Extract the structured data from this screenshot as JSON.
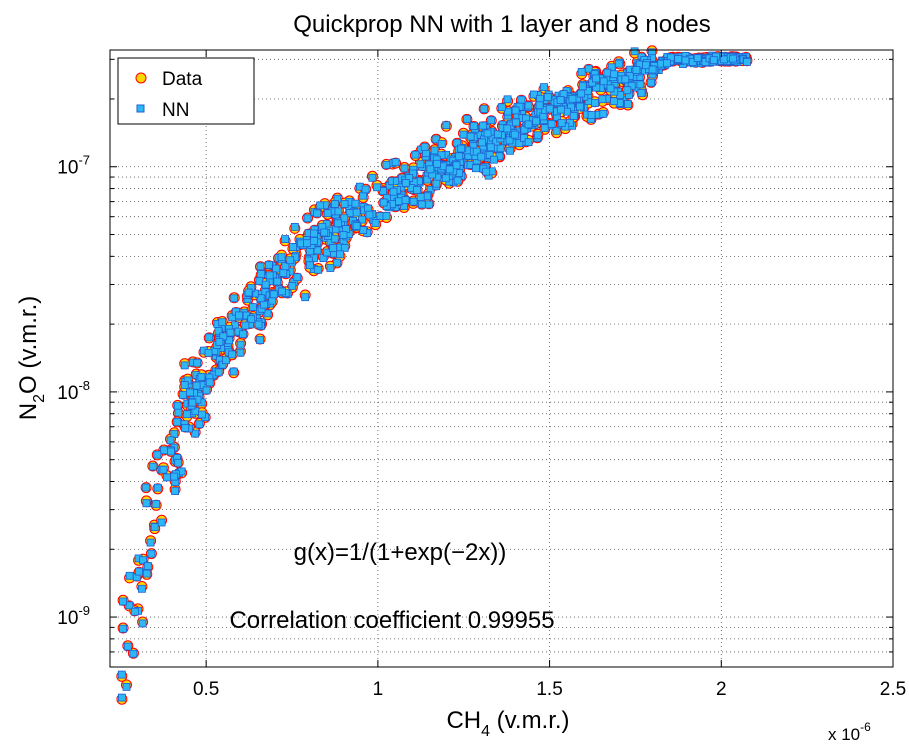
{
  "chart_data": {
    "type": "scatter",
    "title": "Quickprop NN with 1 layer and 8 nodes",
    "xlabel": {
      "main": "CH",
      "sub": "4",
      "suffix": " (v.m.r.)"
    },
    "ylabel": {
      "main": "N",
      "sub": "2",
      "suffix": "O (v.m.r.)"
    },
    "x_multiplier": {
      "text": "x 10",
      "exponent": "-6"
    },
    "xscale": "linear",
    "yscale": "log",
    "xlim": [
      2.2e-07,
      2.5e-06
    ],
    "ylim": [
      6e-10,
      3.3e-07
    ],
    "x_ticks": [
      {
        "value": 5e-07,
        "label": "0.5"
      },
      {
        "value": 1e-06,
        "label": "1"
      },
      {
        "value": 1.5e-06,
        "label": "1.5"
      },
      {
        "value": 2e-06,
        "label": "2"
      },
      {
        "value": 2.5e-06,
        "label": "2.5"
      }
    ],
    "y_ticks": [
      {
        "value": 1e-09,
        "base": "10",
        "exp": "-9"
      },
      {
        "value": 1e-08,
        "base": "10",
        "exp": "-8"
      },
      {
        "value": 1e-07,
        "base": "10",
        "exp": "-7"
      }
    ],
    "grid": true,
    "grid_style": "dotted",
    "legend_position": "top-left",
    "series": [
      {
        "name": "Data",
        "marker": "circle",
        "fill": "#FFD700",
        "stroke": "#FF0000"
      },
      {
        "name": "NN",
        "marker": "square",
        "fill": "#2DB7F5",
        "stroke": "#1E5FD1"
      }
    ],
    "trend_points": [
      {
        "x": 2.7e-07,
        "y": 7.5e-10
      },
      {
        "x": 3e-07,
        "y": 1.5e-09
      },
      {
        "x": 3.5e-07,
        "y": 3e-09
      },
      {
        "x": 4e-07,
        "y": 5.5e-09
      },
      {
        "x": 5e-07,
        "y": 1.2e-08
      },
      {
        "x": 6e-07,
        "y": 2e-08
      },
      {
        "x": 7e-07,
        "y": 3e-08
      },
      {
        "x": 8e-07,
        "y": 4.2e-08
      },
      {
        "x": 9e-07,
        "y": 5.5e-08
      },
      {
        "x": 1e-06,
        "y": 7e-08
      },
      {
        "x": 1.1e-06,
        "y": 8.5e-08
      },
      {
        "x": 1.2e-06,
        "y": 1.05e-07
      },
      {
        "x": 1.3e-06,
        "y": 1.25e-07
      },
      {
        "x": 1.4e-06,
        "y": 1.5e-07
      },
      {
        "x": 1.5e-06,
        "y": 1.75e-07
      },
      {
        "x": 1.6e-06,
        "y": 2.05e-07
      },
      {
        "x": 1.7e-06,
        "y": 2.35e-07
      },
      {
        "x": 1.8e-06,
        "y": 2.7e-07
      },
      {
        "x": 1.85e-06,
        "y": 3e-07
      },
      {
        "x": 2.08e-06,
        "y": 3e-07
      }
    ],
    "annotations": [
      {
        "id": "formula",
        "text": "g(x)=1/(1+exp(−2x))"
      },
      {
        "id": "correlation",
        "text": "Correlation coefficient 0.99955"
      }
    ]
  }
}
